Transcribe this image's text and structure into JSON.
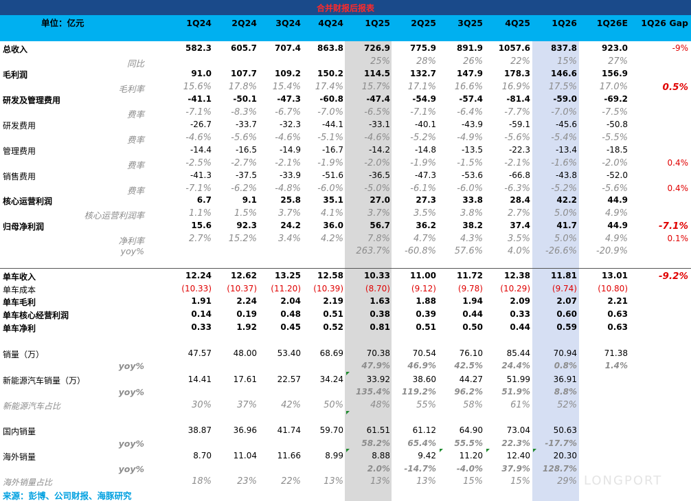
{
  "title": "合并财报后报表",
  "header": {
    "unit": "单位：亿元",
    "columns": [
      "1Q24",
      "2Q24",
      "3Q24",
      "4Q24",
      "1Q25",
      "2Q25",
      "3Q25",
      "4Q25",
      "1Q26",
      "1Q26E",
      "1Q26 Gap"
    ]
  },
  "colors": {
    "header_bg": "#00b0f0",
    "title_bg": "#1a4a8a",
    "shade_1q25": "#d9d9d9",
    "shade_1q26": "#d6dff3",
    "negative": "#e00000",
    "footer": "#00a0e0"
  },
  "rows": [
    {
      "label": "总收入",
      "style": "main",
      "values": [
        "582.3",
        "605.7",
        "707.4",
        "863.8",
        "726.9",
        "775.9",
        "891.9",
        "1057.6",
        "837.8",
        "923.0"
      ],
      "gap": "-9%",
      "gap_style": "red"
    },
    {
      "label": "同比",
      "style": "sub",
      "values": [
        "",
        "",
        "",
        "",
        "25%",
        "28%",
        "26%",
        "22%",
        "15%",
        "27%"
      ],
      "gap": ""
    },
    {
      "label": "毛利润",
      "style": "main",
      "values": [
        "91.0",
        "107.7",
        "109.2",
        "150.2",
        "114.5",
        "132.7",
        "147.9",
        "178.3",
        "146.6",
        "156.9"
      ],
      "gap": ""
    },
    {
      "label": "毛利率",
      "style": "sub",
      "values": [
        "15.6%",
        "17.8%",
        "15.4%",
        "17.4%",
        "15.7%",
        "17.1%",
        "16.6%",
        "16.9%",
        "17.5%",
        "17.0%"
      ],
      "gap": "0.5%",
      "gap_style": "redbi"
    },
    {
      "label": "研发及管理费用",
      "style": "main",
      "values": [
        "-41.1",
        "-50.1",
        "-47.3",
        "-60.8",
        "-47.4",
        "-54.9",
        "-57.4",
        "-81.4",
        "-59.0",
        "-69.2"
      ],
      "gap": ""
    },
    {
      "label": "费率",
      "style": "sub",
      "values": [
        "-7.1%",
        "-8.3%",
        "-6.7%",
        "-7.0%",
        "-6.5%",
        "-7.1%",
        "-6.4%",
        "-7.7%",
        "-7.0%",
        "-7.5%"
      ],
      "gap": ""
    },
    {
      "label": "研发费用",
      "style": "plain",
      "values": [
        "-26.7",
        "-33.7",
        "-32.3",
        "-44.1",
        "-33.1",
        "-40.1",
        "-43.9",
        "-59.1",
        "-45.6",
        "-50.8"
      ],
      "gap": ""
    },
    {
      "label": "费率",
      "style": "sub",
      "values": [
        "-4.6%",
        "-5.6%",
        "-4.6%",
        "-5.1%",
        "-4.6%",
        "-5.2%",
        "-4.9%",
        "-5.6%",
        "-5.4%",
        "-5.5%"
      ],
      "gap": ""
    },
    {
      "label": "管理费用",
      "style": "plain",
      "values": [
        "-14.4",
        "-16.5",
        "-14.9",
        "-16.7",
        "-14.2",
        "-14.8",
        "-13.5",
        "-22.3",
        "-13.4",
        "-18.5"
      ],
      "gap": ""
    },
    {
      "label": "费率",
      "style": "sub",
      "values": [
        "-2.5%",
        "-2.7%",
        "-2.1%",
        "-1.9%",
        "-2.0%",
        "-1.9%",
        "-1.5%",
        "-2.1%",
        "-1.6%",
        "-2.0%"
      ],
      "gap": "0.4%",
      "gap_style": "red"
    },
    {
      "label": "销售费用",
      "style": "plain",
      "values": [
        "-41.3",
        "-37.5",
        "-33.9",
        "-51.6",
        "-36.5",
        "-47.3",
        "-53.6",
        "-66.8",
        "-43.8",
        "-52.0"
      ],
      "gap": ""
    },
    {
      "label": "费率",
      "style": "sub",
      "values": [
        "-7.1%",
        "-6.2%",
        "-4.8%",
        "-6.0%",
        "-5.0%",
        "-6.1%",
        "-6.0%",
        "-6.3%",
        "-5.2%",
        "-5.6%"
      ],
      "gap": "0.4%",
      "gap_style": "red"
    },
    {
      "label": "核心运营利润",
      "style": "main",
      "values": [
        "6.7",
        "9.1",
        "25.8",
        "35.1",
        "27.0",
        "27.3",
        "33.8",
        "28.4",
        "42.2",
        "44.9"
      ],
      "gap": ""
    },
    {
      "label": "核心运营利润率",
      "style": "sub",
      "values": [
        "1.1%",
        "1.5%",
        "3.7%",
        "4.1%",
        "3.7%",
        "3.5%",
        "3.8%",
        "2.7%",
        "5.0%",
        "4.9%"
      ],
      "gap": ""
    },
    {
      "label": "归母净利润",
      "style": "main",
      "values": [
        "15.6",
        "92.3",
        "24.2",
        "36.0",
        "56.7",
        "36.2",
        "38.2",
        "37.4",
        "41.7",
        "44.9"
      ],
      "gap": "-7.1%",
      "gap_style": "redbi"
    },
    {
      "label": "净利率",
      "style": "sub",
      "values": [
        "2.7%",
        "15.2%",
        "3.4%",
        "4.2%",
        "7.8%",
        "4.7%",
        "4.3%",
        "3.5%",
        "5.0%",
        "4.9%"
      ],
      "gap": "0.1%",
      "gap_style": "red"
    },
    {
      "label": "yoy%",
      "style": "sub",
      "values": [
        "",
        "",
        "",
        "",
        "263.7%",
        "-60.8%",
        "57.6%",
        "4.0%",
        "-26.6%",
        "-20.9%"
      ],
      "gap": ""
    },
    {
      "label": "单车收入",
      "style": "main",
      "values": [
        "12.24",
        "12.62",
        "13.25",
        "12.58",
        "10.33",
        "11.00",
        "11.72",
        "12.38",
        "11.81",
        "13.01"
      ],
      "gap": "-9.2%",
      "gap_style": "redbi"
    },
    {
      "label": "单车成本",
      "style": "plainred",
      "values": [
        "(10.33)",
        "(10.37)",
        "(11.20)",
        "(10.39)",
        "(8.70)",
        "(9.12)",
        "(9.78)",
        "(10.29)",
        "(9.74)",
        "(10.80)"
      ],
      "gap": ""
    },
    {
      "label": "单车毛利",
      "style": "main",
      "values": [
        "1.91",
        "2.24",
        "2.04",
        "2.19",
        "1.63",
        "1.88",
        "1.94",
        "2.09",
        "2.07",
        "2.21"
      ],
      "gap": ""
    },
    {
      "label": "单车核心经营利润",
      "style": "main",
      "values": [
        "0.14",
        "0.19",
        "0.48",
        "0.51",
        "0.38",
        "0.39",
        "0.44",
        "0.33",
        "0.60",
        "0.63"
      ],
      "gap": ""
    },
    {
      "label": "单车净利",
      "style": "main",
      "values": [
        "0.33",
        "1.92",
        "0.45",
        "0.52",
        "0.81",
        "0.51",
        "0.50",
        "0.44",
        "0.59",
        "0.63"
      ],
      "gap": ""
    },
    {
      "label": "销量（万）",
      "style": "plain",
      "values": [
        "47.57",
        "48.00",
        "53.40",
        "68.69",
        "70.38",
        "70.54",
        "76.10",
        "85.44",
        "70.94",
        "71.38"
      ],
      "gap": ""
    },
    {
      "label": "yoy%",
      "style": "subbold",
      "values": [
        "",
        "",
        "",
        "",
        "47.9%",
        "46.9%",
        "42.5%",
        "24.4%",
        "0.8%",
        "1.4%"
      ],
      "gap": ""
    },
    {
      "label": "新能源汽车销量（万）",
      "style": "plain",
      "values": [
        "14.41",
        "17.61",
        "22.57",
        "34.24",
        "33.92",
        "38.60",
        "44.27",
        "51.99",
        "36.91",
        ""
      ],
      "gap": ""
    },
    {
      "label": "yoy%",
      "style": "subbold",
      "values": [
        "",
        "",
        "",
        "",
        "135.4%",
        "119.2%",
        "96.2%",
        "51.9%",
        "8.8%",
        ""
      ],
      "gap": ""
    },
    {
      "label": "新能源汽车占比",
      "style": "grayrow",
      "values": [
        "30%",
        "37%",
        "42%",
        "50%",
        "48%",
        "55%",
        "58%",
        "61%",
        "52%",
        ""
      ],
      "gap": ""
    },
    {
      "label": "国内销量",
      "style": "plain",
      "values": [
        "38.87",
        "36.96",
        "41.74",
        "59.70",
        "61.51",
        "61.12",
        "64.90",
        "73.04",
        "50.63",
        ""
      ],
      "gap": ""
    },
    {
      "label": "yoy%",
      "style": "subbold",
      "values": [
        "",
        "",
        "",
        "",
        "58.2%",
        "65.4%",
        "55.5%",
        "22.3%",
        "-17.7%",
        ""
      ],
      "gap": ""
    },
    {
      "label": "海外销量",
      "style": "plain",
      "values": [
        "8.70",
        "11.04",
        "11.66",
        "8.99",
        "8.88",
        "9.42",
        "11.20",
        "12.40",
        "20.30",
        ""
      ],
      "gap": ""
    },
    {
      "label": "yoy%",
      "style": "subbold",
      "values": [
        "",
        "",
        "",
        "",
        "2.0%",
        "-14.7%",
        "-4.0%",
        "37.9%",
        "128.7%",
        ""
      ],
      "gap": ""
    },
    {
      "label": "海外销量占比",
      "style": "grayrow",
      "values": [
        "18%",
        "23%",
        "22%",
        "13%",
        "13%",
        "13%",
        "15%",
        "15%",
        "29%",
        ""
      ],
      "gap": ""
    }
  ],
  "footer": "来源：彭博、公司财报、海豚研究",
  "watermark": "LONGPORT"
}
